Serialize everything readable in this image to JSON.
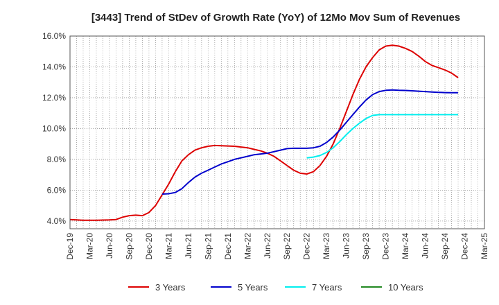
{
  "chart_data": {
    "type": "line",
    "title": "[3443]  Trend of StDev of Growth Rate (YoY) of 12Mo Mov Sum of Revenues",
    "xlabel": "",
    "ylabel": "",
    "ylim": [
      3.5,
      16.0
    ],
    "yticks": [
      4.0,
      6.0,
      8.0,
      10.0,
      12.0,
      14.0,
      16.0
    ],
    "ytick_labels": [
      "4.0%",
      "6.0%",
      "8.0%",
      "10.0%",
      "12.0%",
      "14.0%",
      "16.0%"
    ],
    "xticks": [
      "Dec-19",
      "Mar-20",
      "Jun-20",
      "Sep-20",
      "Dec-20",
      "Mar-21",
      "Jun-21",
      "Sep-21",
      "Dec-21",
      "Mar-22",
      "Jun-22",
      "Sep-22",
      "Dec-22",
      "Mar-23",
      "Jun-23",
      "Sep-23",
      "Dec-23",
      "Mar-24",
      "Jun-24",
      "Sep-24",
      "Dec-24",
      "Mar-25"
    ],
    "grid": true,
    "legend_position": "bottom",
    "series": [
      {
        "name": "3 Years",
        "color": "#dd0000",
        "start_index": 0,
        "values": [
          4.1,
          4.07,
          4.05,
          4.05,
          4.05,
          4.06,
          4.07,
          4.1,
          4.25,
          4.35,
          4.38,
          4.35,
          4.55,
          5.0,
          5.7,
          6.4,
          7.2,
          7.9,
          8.3,
          8.6,
          8.75,
          8.85,
          8.9,
          8.88,
          8.87,
          8.85,
          8.8,
          8.75,
          8.65,
          8.55,
          8.4,
          8.2,
          7.9,
          7.6,
          7.3,
          7.1,
          7.05,
          7.2,
          7.6,
          8.2,
          9.0,
          10.0,
          11.1,
          12.2,
          13.2,
          14.0,
          14.6,
          15.1,
          15.35,
          15.4,
          15.35,
          15.2,
          15.0,
          14.7,
          14.35,
          14.1,
          13.95,
          13.8,
          13.6,
          13.3
        ]
      },
      {
        "name": "5 Years",
        "color": "#0000cc",
        "start_index": 14,
        "values": [
          5.75,
          5.77,
          5.85,
          6.1,
          6.5,
          6.85,
          7.1,
          7.3,
          7.5,
          7.7,
          7.85,
          8.0,
          8.1,
          8.2,
          8.3,
          8.35,
          8.4,
          8.5,
          8.6,
          8.7,
          8.72,
          8.72,
          8.72,
          8.75,
          8.85,
          9.1,
          9.45,
          9.9,
          10.4,
          10.9,
          11.4,
          11.85,
          12.2,
          12.4,
          12.48,
          12.5,
          12.48,
          12.47,
          12.45,
          12.42,
          12.4,
          12.37,
          12.35,
          12.33,
          12.32,
          12.32
        ]
      },
      {
        "name": "7 Years",
        "color": "#00eeee",
        "start_index": 36,
        "values": [
          8.1,
          8.15,
          8.25,
          8.45,
          8.75,
          9.15,
          9.6,
          10.0,
          10.35,
          10.65,
          10.85,
          10.9,
          10.9,
          10.9,
          10.9,
          10.9,
          10.9,
          10.9,
          10.9,
          10.9,
          10.9,
          10.9,
          10.9,
          10.9
        ]
      },
      {
        "name": "10 Years",
        "color": "#228822",
        "start_index": 0,
        "values": []
      }
    ]
  }
}
